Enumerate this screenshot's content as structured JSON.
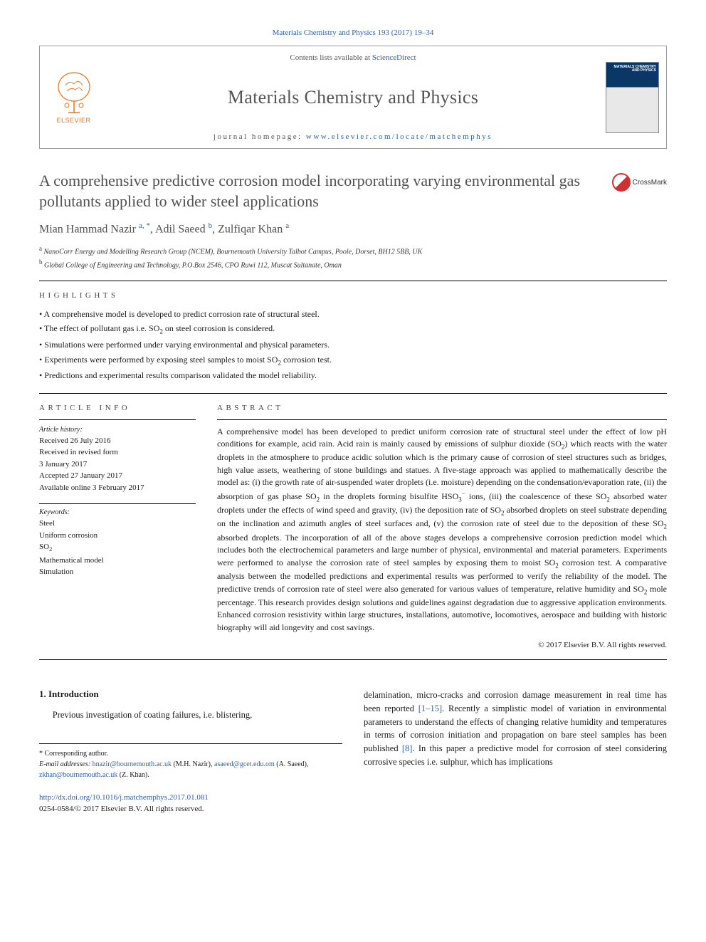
{
  "citation": "Materials Chemistry and Physics 193 (2017) 19–34",
  "header": {
    "publisher_name": "ELSEVIER",
    "contents_prefix": "Contents lists available at ",
    "contents_link": "ScienceDirect",
    "journal_name": "Materials Chemistry and Physics",
    "homepage_prefix": "journal homepage: ",
    "homepage_url": "www.elsevier.com/locate/matchemphys",
    "cover_text": "MATERIALS CHEMISTRY AND PHYSICS"
  },
  "crossmark_label": "CrossMark",
  "title": "A comprehensive predictive corrosion model incorporating varying environmental gas pollutants applied to wider steel applications",
  "authors_html": "Mian Hammad Nazir <sup>a, *</sup>, Adil Saeed <sup>b</sup>, Zulfiqar Khan <sup>a</sup>",
  "affiliations": [
    {
      "sup": "a",
      "text": "NanoCorr Energy and Modelling Research Group (NCEM), Bournemouth University Talbot Campus, Poole, Dorset, BH12 5BB, UK"
    },
    {
      "sup": "b",
      "text": "Global College of Engineering and Technology, P.O.Box 2546, CPO Ruwi 112, Muscat Sultanate, Oman"
    }
  ],
  "labels": {
    "highlights": "HIGHLIGHTS",
    "article_info": "ARTICLE INFO",
    "abstract": "ABSTRACT"
  },
  "highlights": [
    "A comprehensive model is developed to predict corrosion rate of structural steel.",
    "The effect of pollutant gas i.e. SO<sub>2</sub> on steel corrosion is considered.",
    "Simulations were performed under varying environmental and physical parameters.",
    "Experiments were performed by exposing steel samples to moist SO<sub>2</sub> corrosion test.",
    "Predictions and experimental results comparison validated the model reliability."
  ],
  "article_info": {
    "history_label": "Article history:",
    "history": "Received 26 July 2016<br>Received in revised form<br>3 January 2017<br>Accepted 27 January 2017<br>Available online 3 February 2017",
    "keywords_label": "Keywords:",
    "keywords": "Steel<br>Uniform corrosion<br>SO<sub>2</sub><br>Mathematical model<br>Simulation"
  },
  "abstract": "A comprehensive model has been developed to predict uniform corrosion rate of structural steel under the effect of low pH conditions for example, acid rain. Acid rain is mainly caused by emissions of sulphur dioxide (SO<sub>2</sub>) which reacts with the water droplets in the atmosphere to produce acidic solution which is the primary cause of corrosion of steel structures such as bridges, high value assets, weathering of stone buildings and statues. A five-stage approach was applied to mathematically describe the model as: (i) the growth rate of air-suspended water droplets (i.e. moisture) depending on the condensation/evaporation rate, (ii) the absorption of gas phase SO<sub>2</sub> in the droplets forming bisulfite HSO<sub>3</sub><sup>−</sup> ions, (iii) the coalescence of these SO<sub>2</sub> absorbed water droplets under the effects of wind speed and gravity, (iv) the deposition rate of SO<sub>2</sub> absorbed droplets on steel substrate depending on the inclination and azimuth angles of steel surfaces and, (v) the corrosion rate of steel due to the deposition of these SO<sub>2</sub> absorbed droplets. The incorporation of all of the above stages develops a comprehensive corrosion prediction model which includes both the electrochemical parameters and large number of physical, environmental and material parameters. Experiments were performed to analyse the corrosion rate of steel samples by exposing them to moist SO<sub>2</sub> corrosion test. A comparative analysis between the modelled predictions and experimental results was performed to verify the reliability of the model. The predictive trends of corrosion rate of steel were also generated for various values of temperature, relative humidity and SO<sub>2</sub> mole percentage. This research provides design solutions and guidelines against degradation due to aggressive application environments. Enhanced corrosion resistivity within large structures, installations, automotive, locomotives, aerospace and building with historic biography will aid longevity and cost savings.",
  "copyright": "© 2017 Elsevier B.V. All rights reserved.",
  "intro": {
    "heading": "1. Introduction",
    "left_para": "Previous investigation of coating failures, i.e. blistering,",
    "right_para": "delamination, micro-cracks and corrosion damage measurement in real time has been reported <a class=\"ref\" href=\"#\">[1–15]</a>. Recently a simplistic model of variation in environmental parameters to understand the effects of changing relative humidity and temperatures in terms of corrosion initiation and propagation on bare steel samples has been published <a class=\"ref\" href=\"#\">[8]</a>. In this paper a predictive model for corrosion of steel considering corrosive species i.e. sulphur, which has implications"
  },
  "footnotes": {
    "corresponding": "* Corresponding author.",
    "emails_label": "E-mail addresses:",
    "emails_html": "<a href=\"#\">hnazir@bournemouth.ac.uk</a> (M.H. Nazir), <a href=\"#\">asaeed@gcet.edu.om</a> (A. Saeed), <a href=\"#\">zkhan@bournemouth.ac.uk</a> (Z. Khan)."
  },
  "doi": {
    "url": "http://dx.doi.org/10.1016/j.matchemphys.2017.01.081",
    "issn_line": "0254-0584/© 2017 Elsevier B.V. All rights reserved."
  },
  "colors": {
    "link": "#2d5fa4",
    "title_gray": "#505050",
    "orange": "#e8751a"
  }
}
